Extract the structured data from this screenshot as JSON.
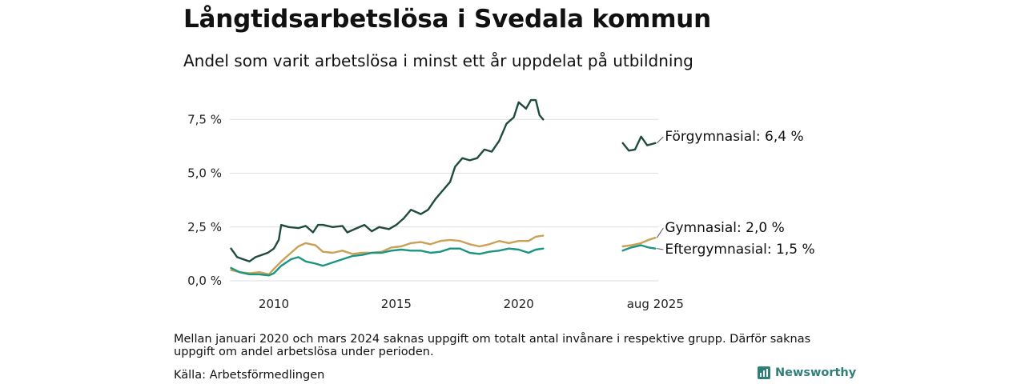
{
  "header": {
    "title": "Långtidsarbetslösa i Svedala kommun",
    "subtitle": "Andel som varit arbetslösa i minst ett år uppdelat på utbildning"
  },
  "footer": {
    "note": "Mellan januari 2020 och mars 2024 saknas uppgift om totalt antal invånare i respektive grupp. Därför saknas uppgift om andel arbetslösa under perioden.",
    "source": "Källa: Arbetsförmedlingen",
    "brand": "Newsworthy",
    "brand_icon": "bar-chart-logo-icon"
  },
  "chart_data": {
    "type": "line",
    "x_unit": "year",
    "xlim": [
      2008.2,
      2025.7
    ],
    "ylim": [
      0,
      8.7
    ],
    "y_ticks": [
      0,
      2.5,
      5,
      7.5
    ],
    "y_tick_labels": [
      "0,0 %",
      "2,5 %",
      "5,0 %",
      "7,5 %"
    ],
    "x_ticks": [
      2010,
      2015,
      2020,
      2025.58
    ],
    "x_tick_labels": [
      "2010",
      "2015",
      "2020",
      "aug 2025"
    ],
    "grid": "horizontal",
    "legend": "end-labels",
    "series": [
      {
        "color": "#1f4a40",
        "label": "Förgymnasial: 6,4 %",
        "segments": [
          [
            [
              2008.25,
              1.5
            ],
            [
              2008.5,
              1.1
            ],
            [
              2008.75,
              1.0
            ],
            [
              2009.0,
              0.9
            ],
            [
              2009.25,
              1.1
            ],
            [
              2009.5,
              1.2
            ],
            [
              2009.75,
              1.3
            ],
            [
              2010.0,
              1.5
            ],
            [
              2010.2,
              1.9
            ],
            [
              2010.3,
              2.6
            ],
            [
              2010.6,
              2.5
            ],
            [
              2011.0,
              2.45
            ],
            [
              2011.3,
              2.55
            ],
            [
              2011.6,
              2.25
            ],
            [
              2011.8,
              2.6
            ],
            [
              2012.0,
              2.6
            ],
            [
              2012.4,
              2.5
            ],
            [
              2012.8,
              2.55
            ],
            [
              2013.0,
              2.25
            ],
            [
              2013.3,
              2.4
            ],
            [
              2013.7,
              2.6
            ],
            [
              2014.0,
              2.3
            ],
            [
              2014.3,
              2.5
            ],
            [
              2014.7,
              2.4
            ],
            [
              2015.0,
              2.6
            ],
            [
              2015.3,
              2.9
            ],
            [
              2015.6,
              3.3
            ],
            [
              2016.0,
              3.1
            ],
            [
              2016.3,
              3.3
            ],
            [
              2016.6,
              3.8
            ],
            [
              2016.9,
              4.2
            ],
            [
              2017.2,
              4.6
            ],
            [
              2017.4,
              5.3
            ],
            [
              2017.7,
              5.7
            ],
            [
              2018.0,
              5.6
            ],
            [
              2018.3,
              5.7
            ],
            [
              2018.6,
              6.1
            ],
            [
              2018.9,
              6.0
            ],
            [
              2019.2,
              6.5
            ],
            [
              2019.5,
              7.3
            ],
            [
              2019.8,
              7.6
            ],
            [
              2020.0,
              8.3
            ],
            [
              2020.3,
              8.0
            ],
            [
              2020.5,
              8.4
            ],
            [
              2020.7,
              8.4
            ],
            [
              2020.85,
              7.7
            ],
            [
              2021.0,
              7.5
            ]
          ],
          [
            [
              2024.25,
              6.4
            ],
            [
              2024.5,
              6.05
            ],
            [
              2024.75,
              6.1
            ],
            [
              2025.0,
              6.7
            ],
            [
              2025.25,
              6.3
            ],
            [
              2025.58,
              6.4
            ]
          ]
        ]
      },
      {
        "color": "#c9a055",
        "label": "Gymnasial: 2,0 %",
        "segments": [
          [
            [
              2008.25,
              0.5
            ],
            [
              2008.6,
              0.4
            ],
            [
              2009.0,
              0.35
            ],
            [
              2009.4,
              0.4
            ],
            [
              2009.8,
              0.3
            ],
            [
              2010.0,
              0.55
            ],
            [
              2010.3,
              0.9
            ],
            [
              2010.7,
              1.3
            ],
            [
              2011.0,
              1.6
            ],
            [
              2011.3,
              1.75
            ],
            [
              2011.7,
              1.65
            ],
            [
              2012.0,
              1.35
            ],
            [
              2012.4,
              1.3
            ],
            [
              2012.8,
              1.4
            ],
            [
              2013.2,
              1.25
            ],
            [
              2013.6,
              1.3
            ],
            [
              2014.0,
              1.3
            ],
            [
              2014.4,
              1.35
            ],
            [
              2014.8,
              1.55
            ],
            [
              2015.2,
              1.6
            ],
            [
              2015.6,
              1.75
            ],
            [
              2016.0,
              1.8
            ],
            [
              2016.4,
              1.7
            ],
            [
              2016.8,
              1.85
            ],
            [
              2017.2,
              1.9
            ],
            [
              2017.6,
              1.85
            ],
            [
              2018.0,
              1.7
            ],
            [
              2018.4,
              1.6
            ],
            [
              2018.8,
              1.7
            ],
            [
              2019.2,
              1.85
            ],
            [
              2019.6,
              1.75
            ],
            [
              2020.0,
              1.85
            ],
            [
              2020.4,
              1.85
            ],
            [
              2020.7,
              2.05
            ],
            [
              2021.0,
              2.1
            ]
          ],
          [
            [
              2024.25,
              1.6
            ],
            [
              2024.6,
              1.65
            ],
            [
              2025.0,
              1.75
            ],
            [
              2025.3,
              1.9
            ],
            [
              2025.58,
              2.0
            ]
          ]
        ]
      },
      {
        "color": "#1a9582",
        "label": "Eftergymnasial: 1,5 %",
        "segments": [
          [
            [
              2008.25,
              0.6
            ],
            [
              2008.6,
              0.4
            ],
            [
              2009.0,
              0.3
            ],
            [
              2009.4,
              0.3
            ],
            [
              2009.8,
              0.25
            ],
            [
              2010.0,
              0.35
            ],
            [
              2010.3,
              0.7
            ],
            [
              2010.7,
              1.0
            ],
            [
              2011.0,
              1.1
            ],
            [
              2011.3,
              0.9
            ],
            [
              2011.7,
              0.8
            ],
            [
              2012.0,
              0.7
            ],
            [
              2012.4,
              0.85
            ],
            [
              2012.8,
              1.0
            ],
            [
              2013.2,
              1.15
            ],
            [
              2013.6,
              1.2
            ],
            [
              2014.0,
              1.3
            ],
            [
              2014.4,
              1.3
            ],
            [
              2014.8,
              1.4
            ],
            [
              2015.2,
              1.45
            ],
            [
              2015.6,
              1.4
            ],
            [
              2016.0,
              1.4
            ],
            [
              2016.4,
              1.3
            ],
            [
              2016.8,
              1.35
            ],
            [
              2017.2,
              1.5
            ],
            [
              2017.6,
              1.5
            ],
            [
              2018.0,
              1.3
            ],
            [
              2018.4,
              1.25
            ],
            [
              2018.8,
              1.35
            ],
            [
              2019.2,
              1.4
            ],
            [
              2019.6,
              1.5
            ],
            [
              2020.0,
              1.45
            ],
            [
              2020.4,
              1.3
            ],
            [
              2020.7,
              1.45
            ],
            [
              2021.0,
              1.5
            ]
          ],
          [
            [
              2024.25,
              1.4
            ],
            [
              2024.6,
              1.55
            ],
            [
              2025.0,
              1.65
            ],
            [
              2025.3,
              1.55
            ],
            [
              2025.58,
              1.5
            ]
          ]
        ]
      }
    ]
  }
}
